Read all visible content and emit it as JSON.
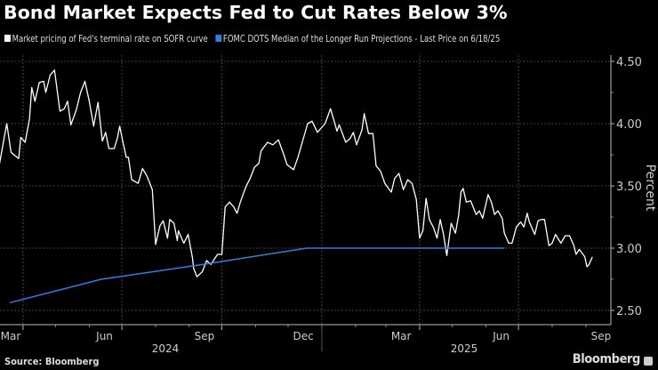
{
  "title": "Bond Market Expects Fed to Cut Rates Below 3%",
  "source": "Source: Bloomberg",
  "logo": "Bloomberg",
  "chart_data": {
    "type": "line",
    "title": "Bond Market Expects Fed to Cut Rates Below 3%",
    "ylabel": "Percent",
    "xlabel": "",
    "ylim": [
      2.38,
      4.55
    ],
    "xlim": [
      "2024-03-10",
      "2025-09-20"
    ],
    "yticks": [
      "2.50",
      "3.00",
      "3.50",
      "4.00",
      "4.50"
    ],
    "xticks": [
      {
        "label": "Mar",
        "date": "2024-03-15"
      },
      {
        "label": "Jun",
        "date": "2024-06-15"
      },
      {
        "label": "Sep",
        "date": "2024-09-15"
      },
      {
        "label": "Dec",
        "date": "2024-12-15"
      },
      {
        "label": "Mar",
        "date": "2025-03-15"
      },
      {
        "label": "Jun",
        "date": "2025-06-15"
      },
      {
        "label": "Sep",
        "date": "2025-09-15"
      }
    ],
    "years": [
      {
        "label": "2024",
        "date": "2024-08-10"
      },
      {
        "label": "2025",
        "date": "2025-05-12"
      }
    ],
    "grid": true,
    "legend_position": "top-left",
    "series": [
      {
        "name": "Market pricing of Fed's terminal rate on SOFR curve",
        "color": "#ffffff",
        "points": [
          [
            "2024-03-10",
            3.66
          ],
          [
            "2024-03-17",
            4.0
          ],
          [
            "2024-03-21",
            3.77
          ],
          [
            "2024-03-25",
            3.74
          ],
          [
            "2024-03-28",
            3.72
          ],
          [
            "2024-03-30",
            3.89
          ],
          [
            "2024-04-03",
            3.85
          ],
          [
            "2024-04-07",
            4.04
          ],
          [
            "2024-04-09",
            4.29
          ],
          [
            "2024-04-12",
            4.18
          ],
          [
            "2024-04-16",
            4.33
          ],
          [
            "2024-04-20",
            4.34
          ],
          [
            "2024-04-22",
            4.25
          ],
          [
            "2024-04-26",
            4.39
          ],
          [
            "2024-04-30",
            4.43
          ],
          [
            "2024-05-05",
            4.1
          ],
          [
            "2024-05-09",
            4.12
          ],
          [
            "2024-05-12",
            4.18
          ],
          [
            "2024-05-15",
            3.99
          ],
          [
            "2024-05-20",
            4.11
          ],
          [
            "2024-05-24",
            4.25
          ],
          [
            "2024-05-28",
            4.34
          ],
          [
            "2024-06-01",
            4.18
          ],
          [
            "2024-06-05",
            3.98
          ],
          [
            "2024-06-09",
            4.17
          ],
          [
            "2024-06-13",
            3.86
          ],
          [
            "2024-06-16",
            3.93
          ],
          [
            "2024-06-19",
            3.8
          ],
          [
            "2024-06-24",
            3.8
          ],
          [
            "2024-06-27",
            3.89
          ],
          [
            "2024-06-29",
            3.98
          ],
          [
            "2024-07-02",
            3.85
          ],
          [
            "2024-07-05",
            3.73
          ],
          [
            "2024-07-07",
            3.73
          ],
          [
            "2024-07-10",
            3.55
          ],
          [
            "2024-07-16",
            3.52
          ],
          [
            "2024-07-20",
            3.64
          ],
          [
            "2024-07-24",
            3.58
          ],
          [
            "2024-07-29",
            3.47
          ],
          [
            "2024-08-01",
            3.03
          ],
          [
            "2024-08-05",
            3.18
          ],
          [
            "2024-08-08",
            3.22
          ],
          [
            "2024-08-12",
            3.08
          ],
          [
            "2024-08-14",
            3.23
          ],
          [
            "2024-08-18",
            3.2
          ],
          [
            "2024-08-21",
            3.06
          ],
          [
            "2024-08-22",
            3.14
          ],
          [
            "2024-08-27",
            3.04
          ],
          [
            "2024-08-31",
            3.11
          ],
          [
            "2024-09-04",
            2.92
          ],
          [
            "2024-09-05",
            2.84
          ],
          [
            "2024-09-08",
            2.77
          ],
          [
            "2024-09-13",
            2.81
          ],
          [
            "2024-09-17",
            2.9
          ],
          [
            "2024-09-21",
            2.87
          ],
          [
            "2024-09-27",
            2.95
          ],
          [
            "2024-10-01",
            2.95
          ],
          [
            "2024-10-04",
            3.33
          ],
          [
            "2024-10-08",
            3.37
          ],
          [
            "2024-10-12",
            3.33
          ],
          [
            "2024-10-15",
            3.28
          ],
          [
            "2024-10-18",
            3.37
          ],
          [
            "2024-10-23",
            3.49
          ],
          [
            "2024-10-27",
            3.56
          ],
          [
            "2024-10-31",
            3.65
          ],
          [
            "2024-11-04",
            3.68
          ],
          [
            "2024-11-06",
            3.78
          ],
          [
            "2024-11-12",
            3.85
          ],
          [
            "2024-11-17",
            3.83
          ],
          [
            "2024-11-22",
            3.87
          ],
          [
            "2024-11-27",
            3.75
          ],
          [
            "2024-11-30",
            3.67
          ],
          [
            "2024-12-06",
            3.63
          ],
          [
            "2024-12-10",
            3.73
          ],
          [
            "2024-12-14",
            3.85
          ],
          [
            "2024-12-19",
            4.0
          ],
          [
            "2024-12-23",
            4.02
          ],
          [
            "2024-12-28",
            3.93
          ],
          [
            "2025-01-04",
            4.0
          ],
          [
            "2025-01-09",
            4.12
          ],
          [
            "2025-01-15",
            3.94
          ],
          [
            "2025-01-17",
            3.99
          ],
          [
            "2025-01-23",
            3.85
          ],
          [
            "2025-01-27",
            3.88
          ],
          [
            "2025-01-30",
            3.93
          ],
          [
            "2025-02-02",
            3.83
          ],
          [
            "2025-02-07",
            3.95
          ],
          [
            "2025-02-09",
            4.08
          ],
          [
            "2025-02-13",
            3.92
          ],
          [
            "2025-02-17",
            3.92
          ],
          [
            "2025-02-20",
            3.66
          ],
          [
            "2025-02-24",
            3.62
          ],
          [
            "2025-02-28",
            3.52
          ],
          [
            "2025-03-06",
            3.45
          ],
          [
            "2025-03-09",
            3.56
          ],
          [
            "2025-03-13",
            3.6
          ],
          [
            "2025-03-17",
            3.47
          ],
          [
            "2025-03-21",
            3.55
          ],
          [
            "2025-03-25",
            3.52
          ],
          [
            "2025-03-29",
            3.39
          ],
          [
            "2025-04-01",
            3.08
          ],
          [
            "2025-04-04",
            3.14
          ],
          [
            "2025-04-07",
            3.4
          ],
          [
            "2025-04-10",
            3.23
          ],
          [
            "2025-04-14",
            3.16
          ],
          [
            "2025-04-17",
            3.08
          ],
          [
            "2025-04-20",
            3.23
          ],
          [
            "2025-04-23",
            3.11
          ],
          [
            "2025-04-26",
            2.94
          ],
          [
            "2025-04-30",
            3.2
          ],
          [
            "2025-05-04",
            3.12
          ],
          [
            "2025-05-07",
            3.27
          ],
          [
            "2025-05-09",
            3.45
          ],
          [
            "2025-05-11",
            3.48
          ],
          [
            "2025-05-14",
            3.37
          ],
          [
            "2025-05-18",
            3.38
          ],
          [
            "2025-05-23",
            3.27
          ],
          [
            "2025-05-26",
            3.3
          ],
          [
            "2025-05-29",
            3.24
          ],
          [
            "2025-06-03",
            3.43
          ],
          [
            "2025-06-06",
            3.37
          ],
          [
            "2025-06-09",
            3.27
          ],
          [
            "2025-06-12",
            3.3
          ],
          [
            "2025-06-16",
            3.24
          ],
          [
            "2025-06-18",
            3.12
          ],
          [
            "2025-06-22",
            3.04
          ],
          [
            "2025-06-25",
            3.04
          ],
          [
            "2025-06-29",
            3.17
          ],
          [
            "2025-07-03",
            3.21
          ],
          [
            "2025-07-06",
            3.17
          ],
          [
            "2025-07-09",
            3.28
          ],
          [
            "2025-07-11",
            3.21
          ],
          [
            "2025-07-16",
            3.11
          ],
          [
            "2025-07-19",
            3.22
          ],
          [
            "2025-07-22",
            3.23
          ],
          [
            "2025-07-25",
            3.23
          ],
          [
            "2025-07-29",
            3.02
          ],
          [
            "2025-08-01",
            3.04
          ],
          [
            "2025-08-04",
            3.11
          ],
          [
            "2025-08-09",
            3.04
          ],
          [
            "2025-08-13",
            3.1
          ],
          [
            "2025-08-17",
            3.1
          ],
          [
            "2025-08-21",
            3.02
          ],
          [
            "2025-08-23",
            2.95
          ],
          [
            "2025-08-26",
            2.99
          ],
          [
            "2025-08-31",
            2.93
          ],
          [
            "2025-09-02",
            2.85
          ],
          [
            "2025-09-04",
            2.87
          ],
          [
            "2025-09-07",
            2.93
          ]
        ]
      },
      {
        "name": "FOMC DOTS Median of the Longer Run Projections - Last Price on 6/18/25",
        "color": "#2f7fe0",
        "points": [
          [
            "2024-03-20",
            2.5625
          ],
          [
            "2024-06-12",
            2.75
          ],
          [
            "2024-09-18",
            2.875
          ],
          [
            "2024-12-18",
            3.0
          ],
          [
            "2025-03-19",
            3.0
          ],
          [
            "2025-06-18",
            3.0
          ]
        ]
      }
    ]
  }
}
